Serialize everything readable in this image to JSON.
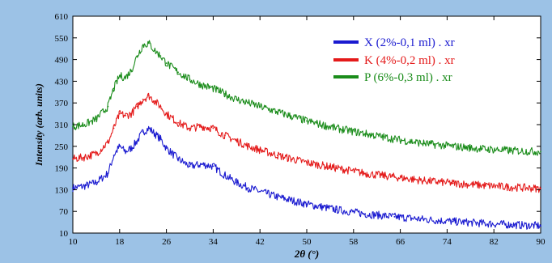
{
  "chart_data": {
    "type": "line",
    "title": "",
    "xlabel": "2θ (°)",
    "ylabel": "Intensity (arb. units)",
    "xlim": [
      10,
      90
    ],
    "ylim": [
      10,
      610
    ],
    "x_ticks": [
      10,
      18,
      26,
      34,
      42,
      50,
      58,
      66,
      74,
      82,
      90
    ],
    "y_ticks": [
      10,
      70,
      130,
      190,
      250,
      310,
      370,
      430,
      490,
      550,
      610
    ],
    "grid": false,
    "legend_position": "top-right",
    "series": [
      {
        "name": "X (2%-0,1 ml) . xr",
        "color": "#1a1ad0",
        "x": [
          10,
          12,
          14,
          16,
          17,
          18,
          19,
          20,
          21,
          22,
          23,
          24,
          25,
          26,
          28,
          30,
          32,
          34,
          36,
          38,
          40,
          42,
          45,
          50,
          55,
          60,
          65,
          70,
          75,
          80,
          85,
          90
        ],
        "y": [
          135,
          140,
          150,
          175,
          225,
          250,
          235,
          245,
          265,
          290,
          300,
          285,
          270,
          245,
          215,
          195,
          200,
          195,
          170,
          150,
          135,
          125,
          110,
          90,
          75,
          63,
          55,
          48,
          42,
          37,
          33,
          30
        ]
      },
      {
        "name": "K (4%-0,2 ml) . xr",
        "color": "#e41a1a",
        "x": [
          10,
          12,
          14,
          16,
          17,
          18,
          19,
          20,
          21,
          22,
          23,
          24,
          25,
          26,
          28,
          30,
          32,
          34,
          36,
          38,
          40,
          42,
          45,
          50,
          55,
          60,
          65,
          70,
          75,
          80,
          85,
          90
        ],
        "y": [
          215,
          220,
          230,
          260,
          300,
          340,
          335,
          340,
          360,
          380,
          390,
          375,
          360,
          340,
          315,
          300,
          305,
          300,
          280,
          265,
          250,
          240,
          225,
          205,
          190,
          175,
          165,
          155,
          148,
          142,
          137,
          133
        ]
      },
      {
        "name": "P (6%-0,3 ml) . xr",
        "color": "#1a8c1a",
        "x": [
          10,
          12,
          14,
          16,
          17,
          18,
          19,
          20,
          21,
          22,
          23,
          24,
          25,
          26,
          28,
          30,
          32,
          34,
          36,
          38,
          40,
          42,
          45,
          50,
          55,
          60,
          65,
          70,
          75,
          80,
          85,
          90
        ],
        "y": [
          305,
          310,
          325,
          360,
          410,
          445,
          440,
          460,
          500,
          530,
          535,
          515,
          500,
          480,
          455,
          435,
          420,
          410,
          395,
          380,
          370,
          360,
          345,
          320,
          300,
          285,
          270,
          258,
          250,
          243,
          238,
          235
        ]
      }
    ]
  }
}
